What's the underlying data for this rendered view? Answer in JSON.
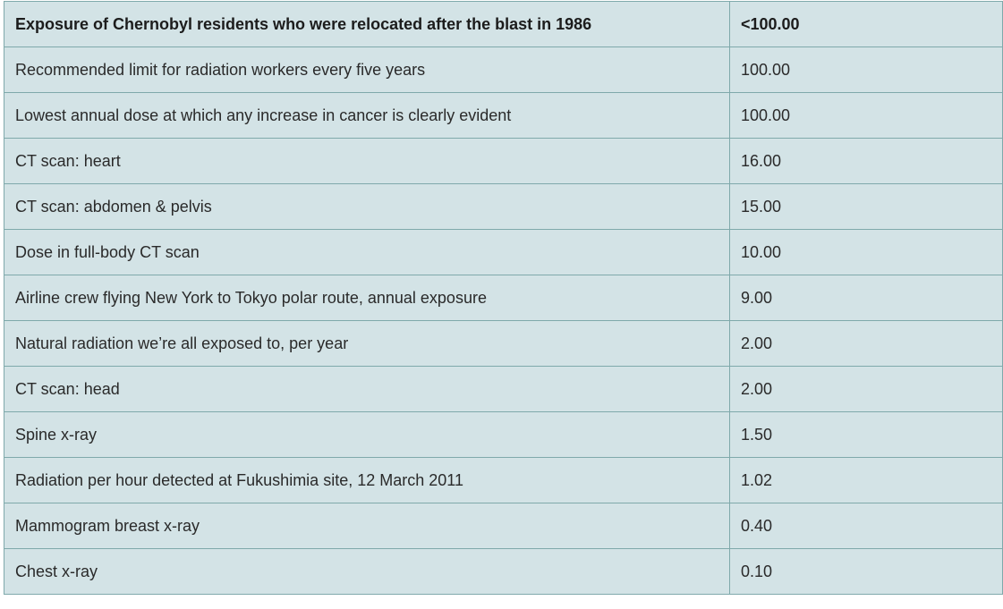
{
  "table": {
    "header": {
      "label": "Exposure of Chernobyl residents who were relocated after the blast in 1986",
      "value": "<100.00"
    },
    "rows": [
      {
        "label": "Recommended limit for radiation workers every five years",
        "value": "100.00"
      },
      {
        "label": "Lowest annual dose at which any increase in cancer is clearly evident",
        "value": "100.00"
      },
      {
        "label": "CT scan: heart",
        "value": "16.00"
      },
      {
        "label": "CT scan: abdomen & pelvis",
        "value": "15.00"
      },
      {
        "label": "Dose in full-body CT scan",
        "value": "10.00"
      },
      {
        "label": "Airline crew flying New York to Tokyo polar route, annual exposure",
        "value": "9.00"
      },
      {
        "label": "Natural radiation we’re all exposed to, per year",
        "value": "2.00"
      },
      {
        "label": "CT scan: head",
        "value": "2.00"
      },
      {
        "label": "Spine x-ray",
        "value": "1.50"
      },
      {
        "label": "Radiation per hour detected at Fukushimia site, 12 March 2011",
        "value": "1.02"
      },
      {
        "label": "Mammogram breast x-ray",
        "value": "0.40"
      },
      {
        "label": "Chest x-ray",
        "value": "0.10"
      }
    ]
  },
  "colors": {
    "cell_background": "#d3e3e6",
    "border": "#7fa9ab",
    "text": "#2a2a2a"
  }
}
